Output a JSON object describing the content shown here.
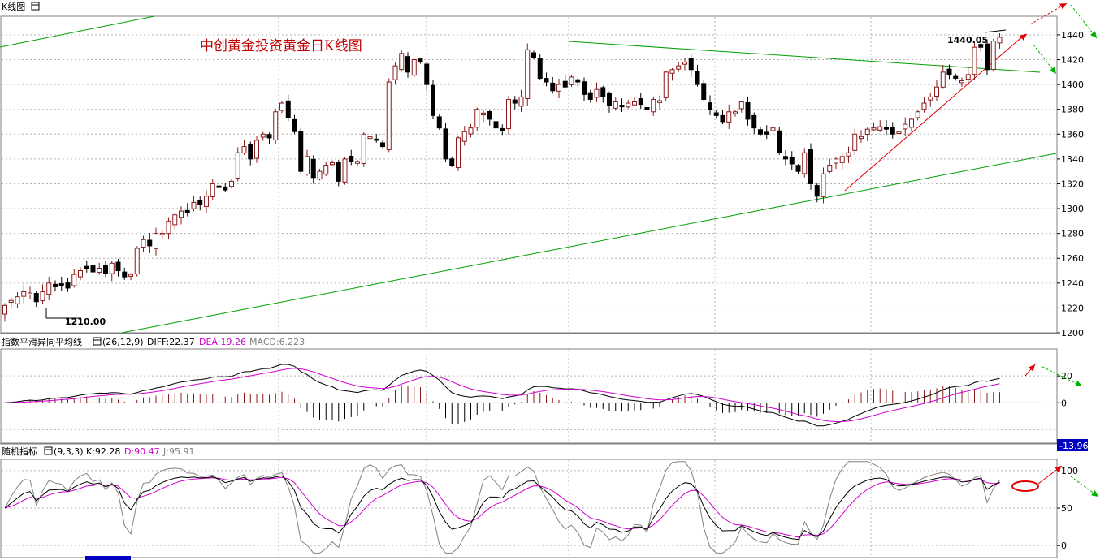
{
  "window": {
    "tab_label": "K线图",
    "tab_icon": "calendar-icon"
  },
  "colors": {
    "up": "#8b1a1a",
    "down": "#000000",
    "grid": "#b4b4b4",
    "border": "#808080",
    "trend": "#00a000",
    "arrow_red": "#e00000",
    "arrow_green": "#00b000",
    "macd_diff": "#000000",
    "macd_dea": "#d000d0",
    "macd_hist": "#8b1a1a",
    "kdj_k": "#000000",
    "kdj_d": "#d000d0",
    "kdj_j": "#808080",
    "value_box": "#0000c0",
    "title": "#c00000"
  },
  "chart_data": [
    {
      "type": "candlestick",
      "title": "中创黄金投资黄金日K线图",
      "y_ticks": [
        "1200",
        "1220",
        "1240",
        "1260",
        "1280",
        "1300",
        "1320",
        "1340",
        "1360",
        "1380",
        "1400",
        "1420",
        "1440"
      ],
      "ylim": [
        1200,
        1455
      ],
      "grid": true,
      "annotations": [
        "1210.00",
        "1440.05"
      ],
      "closes": [
        1222,
        1226,
        1229,
        1233,
        1232,
        1225,
        1233,
        1240,
        1237,
        1238,
        1236,
        1247,
        1250,
        1252,
        1249,
        1252,
        1248,
        1256,
        1250,
        1245,
        1247,
        1268,
        1275,
        1270,
        1280,
        1280,
        1290,
        1295,
        1298,
        1297,
        1305,
        1303,
        1310,
        1320,
        1317,
        1315,
        1322,
        1345,
        1350,
        1340,
        1355,
        1360,
        1357,
        1378,
        1385,
        1373,
        1362,
        1330,
        1342,
        1325,
        1330,
        1335,
        1337,
        1322,
        1340,
        1338,
        1338,
        1360,
        1358,
        1355,
        1350,
        1402,
        1415,
        1425,
        1410,
        1420,
        1418,
        1400,
        1375,
        1365,
        1340,
        1335,
        1357,
        1362,
        1365,
        1380,
        1377,
        1372,
        1365,
        1363,
        1388,
        1385,
        1390,
        1428,
        1422,
        1405,
        1402,
        1395,
        1400,
        1398,
        1406,
        1402,
        1392,
        1388,
        1396,
        1390,
        1383,
        1386,
        1382,
        1385,
        1386,
        1384,
        1380,
        1388,
        1387,
        1410,
        1412,
        1415,
        1418,
        1412,
        1400,
        1388,
        1380,
        1375,
        1370,
        1378,
        1378,
        1386,
        1372,
        1365,
        1360,
        1360,
        1365,
        1345,
        1340,
        1336,
        1330,
        1345,
        1320,
        1310,
        1328,
        1335,
        1340,
        1342,
        1345,
        1360,
        1358,
        1364,
        1365,
        1366,
        1364,
        1360,
        1362,
        1368,
        1372,
        1378,
        1385,
        1390,
        1398,
        1410,
        1408,
        1405,
        1403,
        1408,
        1430,
        1430,
        1412,
        1435,
        1438
      ]
    },
    {
      "type": "line",
      "title": "指数平滑异同平均线",
      "params": "(26,12,9)",
      "legend": [
        {
          "label": "DIFF:22.37"
        },
        {
          "label": "DEA:19.26"
        },
        {
          "label": "MACD:6.223"
        }
      ],
      "y_ticks": [
        "20",
        "0"
      ],
      "current_value_box": "-13.96"
    },
    {
      "type": "line",
      "title": "随机指标",
      "params": "(9,3,3)",
      "legend": [
        {
          "label": "K:92.28"
        },
        {
          "label": "D:90.47"
        },
        {
          "label": "J:95.91"
        }
      ],
      "y_ticks": [
        "100",
        "50",
        "0"
      ]
    }
  ]
}
